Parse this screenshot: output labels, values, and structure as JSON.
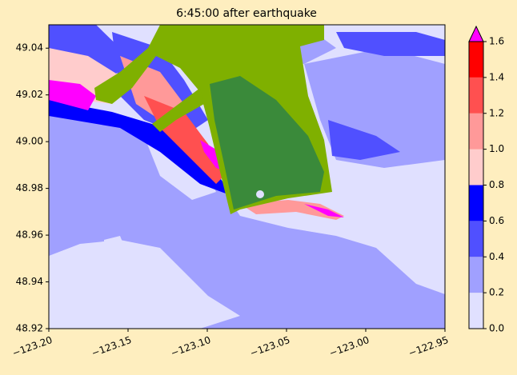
{
  "chart_data": {
    "type": "contour",
    "title": "6:45:00 after earthquake",
    "xlim": [
      -123.2,
      -122.95
    ],
    "ylim": [
      48.92,
      49.05
    ],
    "xticks": [
      {
        "value": -123.2,
        "label": "−123.20"
      },
      {
        "value": -123.15,
        "label": "−123.15"
      },
      {
        "value": -123.1,
        "label": "−123.10"
      },
      {
        "value": -123.05,
        "label": "−123.05"
      },
      {
        "value": -123.0,
        "label": "−123.00"
      },
      {
        "value": -122.95,
        "label": "−122.95"
      }
    ],
    "yticks": [
      48.92,
      48.94,
      48.96,
      48.98,
      {
        "value": 49.0,
        "label": "49.00"
      },
      49.02,
      49.04
    ],
    "colorbar": {
      "ticks": [
        {
          "value": 0.0,
          "label": "0.0"
        },
        0.2,
        0.4,
        0.6,
        0.8,
        {
          "value": 1.0,
          "label": "1.0"
        },
        1.2,
        1.4,
        1.6
      ],
      "colors": [
        "#e0e0ff",
        "#a0a0ff",
        "#5050ff",
        "#0000ff",
        "#ffcccc",
        "#ff9999",
        "#ff5050",
        "#ff0000"
      ],
      "extend_color": "#ff00ff"
    }
  }
}
